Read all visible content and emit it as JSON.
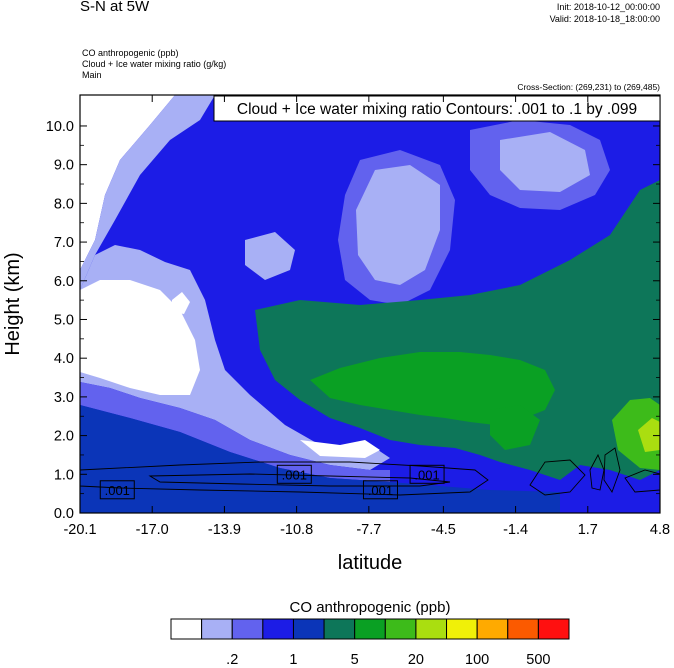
{
  "header": {
    "title": "S-N at 5W",
    "init": "Init: 2018-10-12_00:00:00",
    "valid": "Valid: 2018-10-18_18:00:00",
    "fields": [
      "CO anthropogenic   (ppb)",
      "Cloud + Ice water mixing ratio   (g/kg)",
      "Main"
    ],
    "cross_section": "Cross-Section: (269,231) to (269,485)"
  },
  "chart_data": {
    "type": "heatmap",
    "title": "Cloud + Ice water mixing ratio Contours: .001 to .1 by .099",
    "xlabel": "latitude",
    "ylabel": "Height (km)",
    "xlim": [
      -20.1,
      4.8
    ],
    "ylim": [
      0.0,
      10.8
    ],
    "x_ticks": [
      "-20.1",
      "-17.0",
      "-13.9",
      "-10.8",
      "-7.7",
      "-4.5",
      "-1.4",
      "1.7",
      "4.8"
    ],
    "y_ticks": [
      "0.0",
      "1.0",
      "2.0",
      "3.0",
      "4.0",
      "5.0",
      "6.0",
      "7.0",
      "8.0",
      "9.0",
      "10.0"
    ],
    "contour_labels": [
      ".001",
      ".001",
      ".001",
      ".001"
    ],
    "colorbar": {
      "title": "CO anthropogenic  (ppb)",
      "colors": [
        "#ffffff",
        "#a8b0f5",
        "#6262ee",
        "#1c1ce6",
        "#0b35b8",
        "#0d7659",
        "#0aa023",
        "#3dbb1a",
        "#aade10",
        "#f0f008",
        "#ffaa00",
        "#fb5a00",
        "#ff1010"
      ],
      "labels": [
        ".2",
        "1",
        "5",
        "20",
        "100",
        "500"
      ]
    }
  }
}
